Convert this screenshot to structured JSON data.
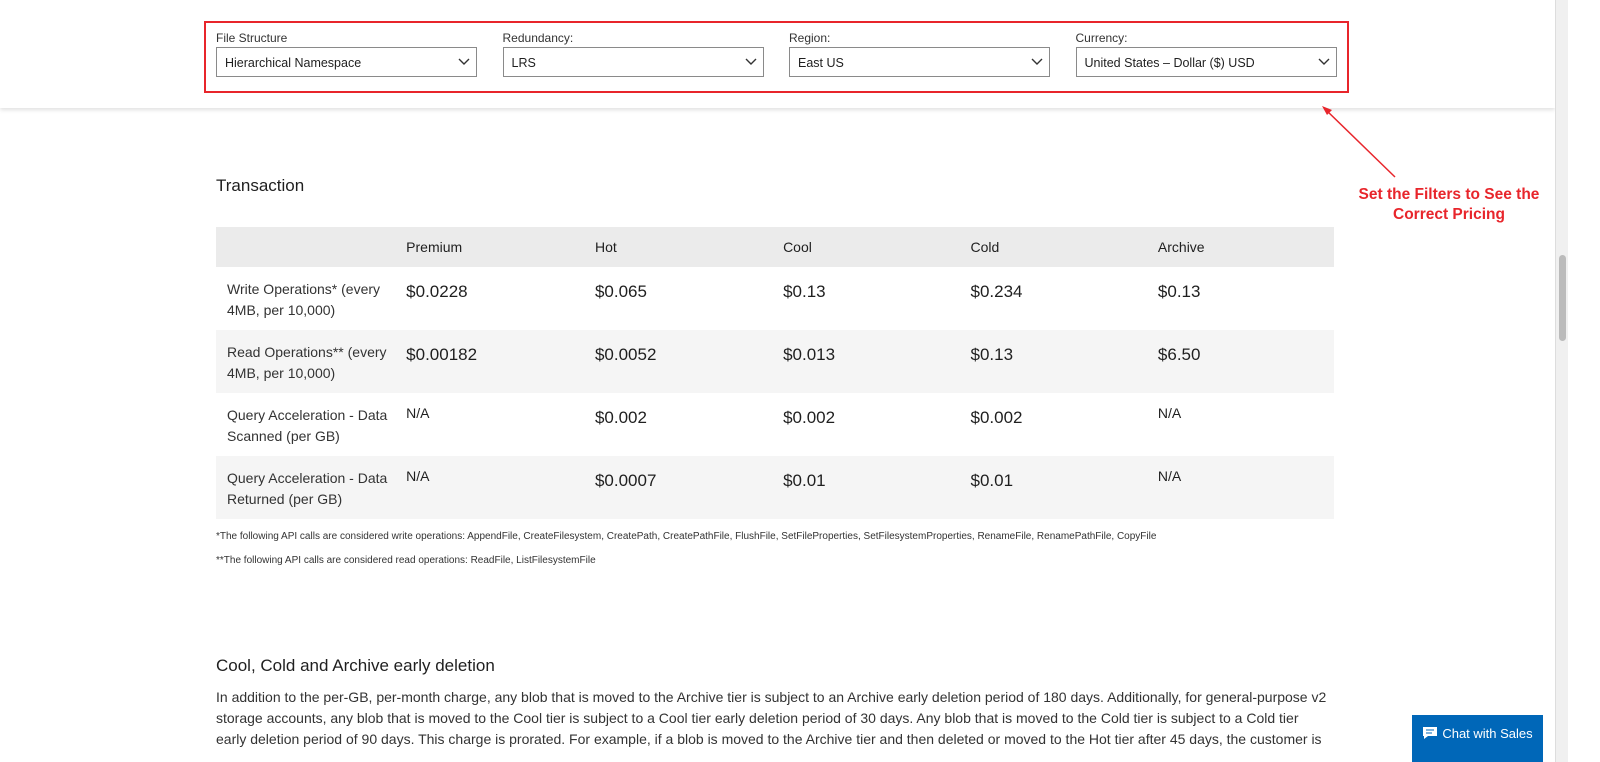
{
  "filters": [
    {
      "label": "File Structure",
      "value": "Hierarchical Namespace"
    },
    {
      "label": "Redundancy:",
      "value": "LRS"
    },
    {
      "label": "Region:",
      "value": "East US"
    },
    {
      "label": "Currency:",
      "value": "United States – Dollar ($) USD"
    }
  ],
  "annotation": "Set the Filters to See the Correct Pricing",
  "transaction": {
    "title": "Transaction",
    "header": [
      "Premium",
      "Hot",
      "Cool",
      "Cold",
      "Archive"
    ],
    "rows": [
      [
        "Write Operations* (every 4MB, per 10,000)",
        "$0.0228",
        "$0.065",
        "$0.13",
        "$0.234",
        "$0.13"
      ],
      [
        "Read Operations** (every 4MB, per 10,000)",
        "$0.00182",
        "$0.0052",
        "$0.013",
        "$0.13",
        "$6.50"
      ],
      [
        "Query Acceleration - Data Scanned (per GB)",
        "N/A",
        "$0.002",
        "$0.002",
        "$0.002",
        "N/A"
      ],
      [
        "Query Acceleration - Data Returned (per GB)",
        "N/A",
        "$0.0007",
        "$0.01",
        "$0.01",
        "N/A"
      ]
    ],
    "footnotes": [
      "*The following API calls are considered write operations: AppendFile, CreateFilesystem, CreatePath, CreatePathFile, FlushFile, SetFileProperties, SetFilesystemProperties, RenameFile, RenamePathFile, CopyFile",
      "**The following API calls are considered read operations: ReadFile, ListFilesystemFile"
    ]
  },
  "early_deletion": {
    "title": "Cool, Cold and Archive early deletion",
    "lines": [
      "In addition to the per-GB, per-month charge, any blob that is moved to the Archive tier is subject to an Archive early deletion period of 180 days. Additionally, for general-purpose v2",
      "storage accounts, any blob that is moved to the Cool tier is subject to a Cool tier early deletion period of 30 days. Any blob that is moved to the Cold tier is subject to a Cold tier",
      "early deletion period of 90 days. This charge is prorated. For example, if a blob is moved to the Archive tier and then deleted or moved to the Hot tier after 45 days, the customer is"
    ]
  },
  "chat_button": "Chat with Sales"
}
